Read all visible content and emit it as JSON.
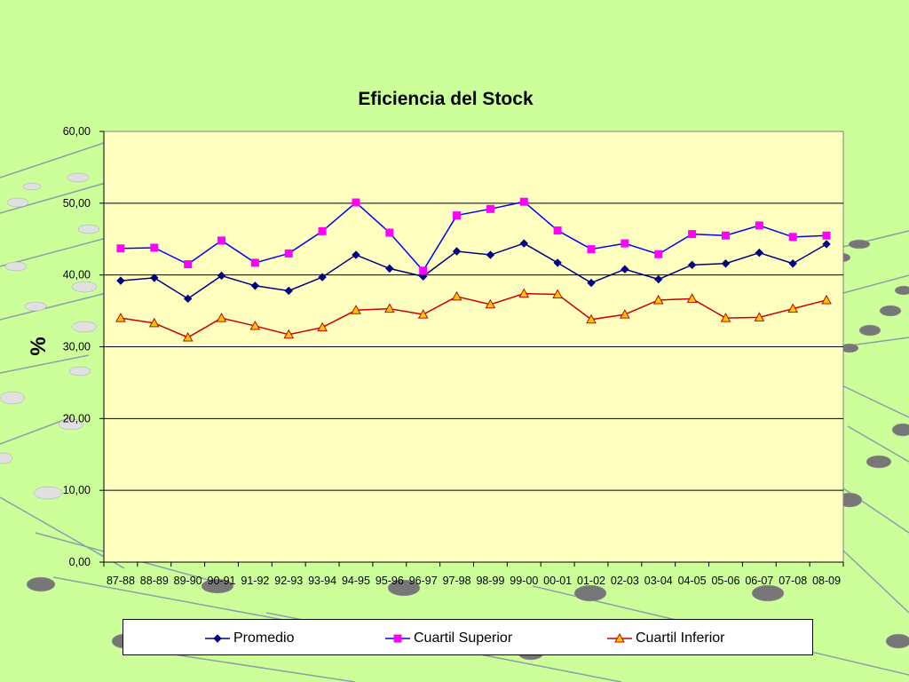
{
  "chart_data": {
    "type": "line",
    "title": "Eficiencia del Stock",
    "ylabel": "%",
    "xlabel": "",
    "ylim": [
      0,
      60
    ],
    "yticks": [
      "0,00",
      "10,00",
      "20,00",
      "30,00",
      "40,00",
      "50,00",
      "60,00"
    ],
    "categories": [
      "87-88",
      "88-89",
      "89-90",
      "90-91",
      "91-92",
      "92-93",
      "93-94",
      "94-95",
      "95-96",
      "96-97",
      "97-98",
      "98-99",
      "99-00",
      "00-01",
      "01-02",
      "02-03",
      "03-04",
      "04-05",
      "05-06",
      "06-07",
      "07-08",
      "08-09"
    ],
    "grid": true,
    "legend_position": "bottom",
    "series": [
      {
        "name": "Promedio",
        "color": "#000080",
        "marker": "diamond",
        "values": [
          39.2,
          39.6,
          36.7,
          39.9,
          38.5,
          37.8,
          39.7,
          42.8,
          40.9,
          39.8,
          43.3,
          42.8,
          44.4,
          41.7,
          38.9,
          40.8,
          39.4,
          41.4,
          41.6,
          43.1,
          41.6,
          44.3
        ]
      },
      {
        "name": "Cuartil Superior",
        "color": "#ff00ff",
        "line_color": "#0000ff",
        "marker": "square",
        "values": [
          43.7,
          43.8,
          41.5,
          44.8,
          41.7,
          43.0,
          46.1,
          50.1,
          45.9,
          40.6,
          48.3,
          49.2,
          50.2,
          46.2,
          43.6,
          44.4,
          42.9,
          45.7,
          45.5,
          46.9,
          45.3,
          45.5
        ]
      },
      {
        "name": "Cuartil Inferior",
        "color": "#ffcc00",
        "line_color": "#cc0000",
        "marker": "triangle",
        "values": [
          34.0,
          33.3,
          31.3,
          34.0,
          32.9,
          31.7,
          32.7,
          35.1,
          35.3,
          34.5,
          37.0,
          35.9,
          37.4,
          37.3,
          33.8,
          34.5,
          36.5,
          36.7,
          34.0,
          34.1,
          35.3,
          36.5
        ]
      }
    ]
  }
}
